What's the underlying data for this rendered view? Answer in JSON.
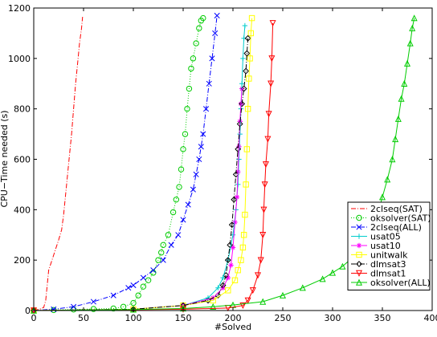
{
  "chart_data": {
    "type": "line",
    "xlabel": "#Solved",
    "ylabel": "CPU−Time needed (s)",
    "xlim": [
      0,
      400
    ],
    "ylim": [
      0,
      1200
    ],
    "x_ticks": [
      0,
      50,
      100,
      150,
      200,
      250,
      300,
      350,
      400
    ],
    "y_ticks": [
      0,
      200,
      400,
      600,
      800,
      1000,
      1200
    ],
    "grid": false,
    "legend_position": "bottom-right",
    "series": [
      {
        "name": "2clseq(SAT)",
        "color": "#ff0000",
        "dash": "6,2,1,2",
        "marker": "none",
        "points": [
          [
            0,
            0
          ],
          [
            5,
            4
          ],
          [
            10,
            12
          ],
          [
            12,
            40
          ],
          [
            15,
            160
          ],
          [
            20,
            220
          ],
          [
            25,
            280
          ],
          [
            28,
            320
          ],
          [
            30,
            380
          ],
          [
            33,
            500
          ],
          [
            36,
            620
          ],
          [
            38,
            700
          ],
          [
            40,
            800
          ],
          [
            42,
            900
          ],
          [
            44,
            980
          ],
          [
            46,
            1060
          ],
          [
            48,
            1120
          ],
          [
            49,
            1165
          ]
        ]
      },
      {
        "name": "oksolver(SAT)",
        "color": "#00cc00",
        "dash": "1,2",
        "marker": "circle",
        "points": [
          [
            0,
            0
          ],
          [
            20,
            2
          ],
          [
            40,
            4
          ],
          [
            60,
            6
          ],
          [
            80,
            8
          ],
          [
            90,
            15
          ],
          [
            100,
            30
          ],
          [
            105,
            60
          ],
          [
            110,
            95
          ],
          [
            115,
            120
          ],
          [
            120,
            150
          ],
          [
            125,
            200
          ],
          [
            128,
            230
          ],
          [
            130,
            260
          ],
          [
            135,
            300
          ],
          [
            140,
            390
          ],
          [
            143,
            440
          ],
          [
            146,
            490
          ],
          [
            148,
            560
          ],
          [
            150,
            640
          ],
          [
            152,
            700
          ],
          [
            154,
            800
          ],
          [
            156,
            880
          ],
          [
            158,
            960
          ],
          [
            160,
            1000
          ],
          [
            163,
            1060
          ],
          [
            166,
            1120
          ],
          [
            168,
            1150
          ],
          [
            170,
            1160
          ]
        ]
      },
      {
        "name": "2clseq(ALL)",
        "color": "#0000ff",
        "dash": "6,2,1,2",
        "marker": "x",
        "points": [
          [
            0,
            0
          ],
          [
            20,
            5
          ],
          [
            40,
            15
          ],
          [
            60,
            35
          ],
          [
            80,
            60
          ],
          [
            95,
            90
          ],
          [
            100,
            100
          ],
          [
            110,
            130
          ],
          [
            120,
            160
          ],
          [
            130,
            200
          ],
          [
            138,
            260
          ],
          [
            145,
            300
          ],
          [
            150,
            360
          ],
          [
            155,
            420
          ],
          [
            160,
            480
          ],
          [
            163,
            540
          ],
          [
            166,
            600
          ],
          [
            168,
            650
          ],
          [
            170,
            700
          ],
          [
            173,
            800
          ],
          [
            176,
            900
          ],
          [
            179,
            1000
          ],
          [
            182,
            1100
          ],
          [
            184,
            1170
          ]
        ]
      },
      {
        "name": "usat05",
        "color": "#00cccc",
        "dash": "",
        "marker": "plus",
        "points": [
          [
            0,
            0
          ],
          [
            100,
            5
          ],
          [
            150,
            20
          ],
          [
            175,
            50
          ],
          [
            185,
            90
          ],
          [
            190,
            130
          ],
          [
            195,
            200
          ],
          [
            200,
            300
          ],
          [
            203,
            400
          ],
          [
            205,
            500
          ],
          [
            206,
            600
          ],
          [
            207,
            700
          ],
          [
            208,
            800
          ],
          [
            209,
            900
          ],
          [
            210,
            1000
          ],
          [
            211,
            1080
          ],
          [
            212,
            1130
          ]
        ]
      },
      {
        "name": "usat10",
        "color": "#ff00ff",
        "dash": "",
        "marker": "star",
        "points": [
          [
            0,
            0
          ],
          [
            100,
            5
          ],
          [
            150,
            20
          ],
          [
            180,
            50
          ],
          [
            190,
            90
          ],
          [
            195,
            130
          ],
          [
            198,
            180
          ],
          [
            200,
            250
          ],
          [
            202,
            350
          ],
          [
            204,
            450
          ],
          [
            205,
            550
          ],
          [
            206,
            650
          ],
          [
            207,
            750
          ],
          [
            208,
            820
          ],
          [
            209,
            880
          ]
        ]
      },
      {
        "name": "unitwalk",
        "color": "#ffff00",
        "dash": "",
        "marker": "square",
        "points": [
          [
            0,
            0
          ],
          [
            100,
            5
          ],
          [
            150,
            20
          ],
          [
            180,
            40
          ],
          [
            195,
            80
          ],
          [
            202,
            120
          ],
          [
            205,
            160
          ],
          [
            208,
            200
          ],
          [
            210,
            250
          ],
          [
            211,
            300
          ],
          [
            212,
            380
          ],
          [
            213,
            500
          ],
          [
            214,
            640
          ],
          [
            215,
            800
          ],
          [
            216,
            920
          ],
          [
            217,
            1000
          ],
          [
            218,
            1100
          ],
          [
            219,
            1160
          ]
        ]
      },
      {
        "name": "dlmsat3",
        "color": "#000000",
        "dash": "6,2,1,2",
        "marker": "diamond",
        "points": [
          [
            0,
            0
          ],
          [
            100,
            5
          ],
          [
            150,
            20
          ],
          [
            175,
            40
          ],
          [
            185,
            60
          ],
          [
            190,
            100
          ],
          [
            193,
            140
          ],
          [
            195,
            200
          ],
          [
            197,
            260
          ],
          [
            199,
            340
          ],
          [
            201,
            440
          ],
          [
            203,
            540
          ],
          [
            205,
            640
          ],
          [
            207,
            740
          ],
          [
            209,
            820
          ],
          [
            211,
            880
          ],
          [
            213,
            950
          ],
          [
            214,
            1020
          ],
          [
            215,
            1080
          ]
        ]
      },
      {
        "name": "dlmsat1",
        "color": "#ff0000",
        "dash": "",
        "marker": "triangle-down",
        "points": [
          [
            0,
            0
          ],
          [
            150,
            5
          ],
          [
            195,
            10
          ],
          [
            210,
            20
          ],
          [
            215,
            40
          ],
          [
            220,
            80
          ],
          [
            225,
            140
          ],
          [
            228,
            200
          ],
          [
            230,
            300
          ],
          [
            231,
            400
          ],
          [
            232,
            500
          ],
          [
            233,
            580
          ],
          [
            235,
            680
          ],
          [
            236,
            780
          ],
          [
            238,
            900
          ],
          [
            239,
            1000
          ],
          [
            240,
            1140
          ]
        ]
      },
      {
        "name": "oksolver(ALL)",
        "color": "#00cc00",
        "dash": "",
        "marker": "triangle-up",
        "points": [
          [
            0,
            0
          ],
          [
            100,
            4
          ],
          [
            150,
            8
          ],
          [
            180,
            15
          ],
          [
            200,
            22
          ],
          [
            230,
            35
          ],
          [
            250,
            60
          ],
          [
            270,
            90
          ],
          [
            290,
            125
          ],
          [
            300,
            150
          ],
          [
            310,
            175
          ],
          [
            320,
            210
          ],
          [
            330,
            250
          ],
          [
            340,
            320
          ],
          [
            345,
            380
          ],
          [
            350,
            450
          ],
          [
            355,
            520
          ],
          [
            360,
            600
          ],
          [
            363,
            680
          ],
          [
            366,
            760
          ],
          [
            369,
            840
          ],
          [
            372,
            900
          ],
          [
            375,
            980
          ],
          [
            378,
            1060
          ],
          [
            380,
            1120
          ],
          [
            382,
            1160
          ]
        ]
      }
    ]
  }
}
